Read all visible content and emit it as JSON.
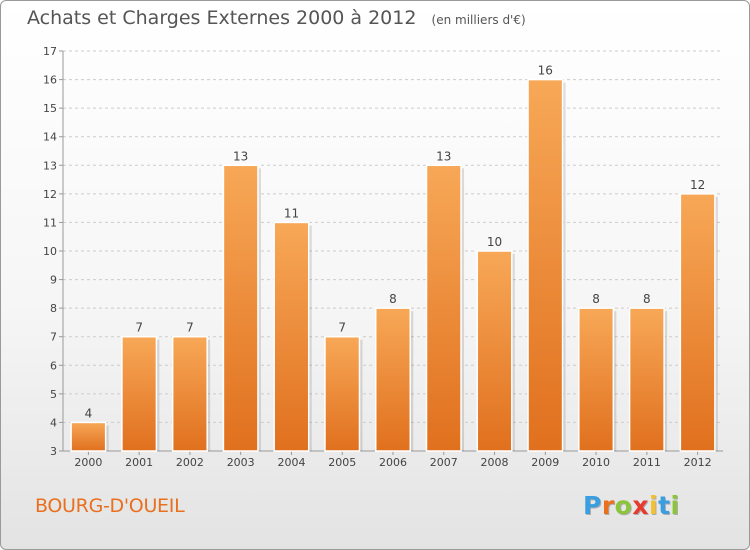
{
  "chart_data": {
    "type": "bar",
    "title": "Achats et Charges Externes 2000 à 2012",
    "unit": "(en milliers d'€)",
    "categories": [
      "2000",
      "2001",
      "2002",
      "2003",
      "2004",
      "2005",
      "2006",
      "2007",
      "2008",
      "2009",
      "2010",
      "2011",
      "2012"
    ],
    "values": [
      4,
      7,
      7,
      13,
      11,
      7,
      8,
      13,
      10,
      16,
      8,
      8,
      12
    ],
    "ylim": [
      3,
      17
    ],
    "yticks": [
      3,
      4,
      5,
      6,
      7,
      8,
      9,
      10,
      11,
      12,
      13,
      14,
      15,
      16,
      17
    ],
    "grid": true,
    "colors": {
      "bar_light": "#f7a857",
      "bar_dark": "#e0701e",
      "grid": "#cccccc"
    }
  },
  "commune": "BOURG-D'OUEIL",
  "logo": {
    "letters": [
      "P",
      "r",
      "o",
      "x",
      "i",
      "t",
      "i"
    ],
    "colors": [
      "#3a9ee0",
      "#e8701e",
      "#8cc43c",
      "#e63a2e",
      "#f2c12e",
      "#3a9ee0",
      "#8cc43c"
    ]
  }
}
